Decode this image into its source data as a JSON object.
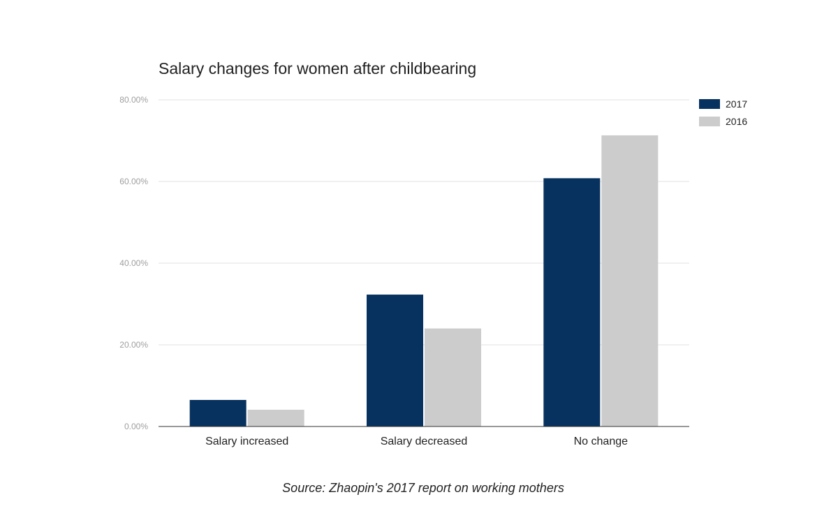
{
  "chart_data": {
    "type": "bar",
    "title": "Salary changes for women after childbearing",
    "categories": [
      "Salary increased",
      "Salary decreased",
      "No change"
    ],
    "series": [
      {
        "name": "2017",
        "values": [
          6.5,
          32.3,
          60.8
        ],
        "color": "#07325f"
      },
      {
        "name": "2016",
        "values": [
          4.1,
          24.0,
          71.3
        ],
        "color": "#cccccc"
      }
    ],
    "ylim": [
      0,
      80
    ],
    "yticks": [
      0,
      20,
      40,
      60,
      80
    ],
    "ytick_labels": [
      "0.00%",
      "20.00%",
      "40.00%",
      "60.00%",
      "80.00%"
    ],
    "xlabel": "",
    "ylabel": "",
    "grid": true,
    "legend_position": "top-right",
    "source": "Source: Zhaopin's 2017 report on working mothers"
  }
}
